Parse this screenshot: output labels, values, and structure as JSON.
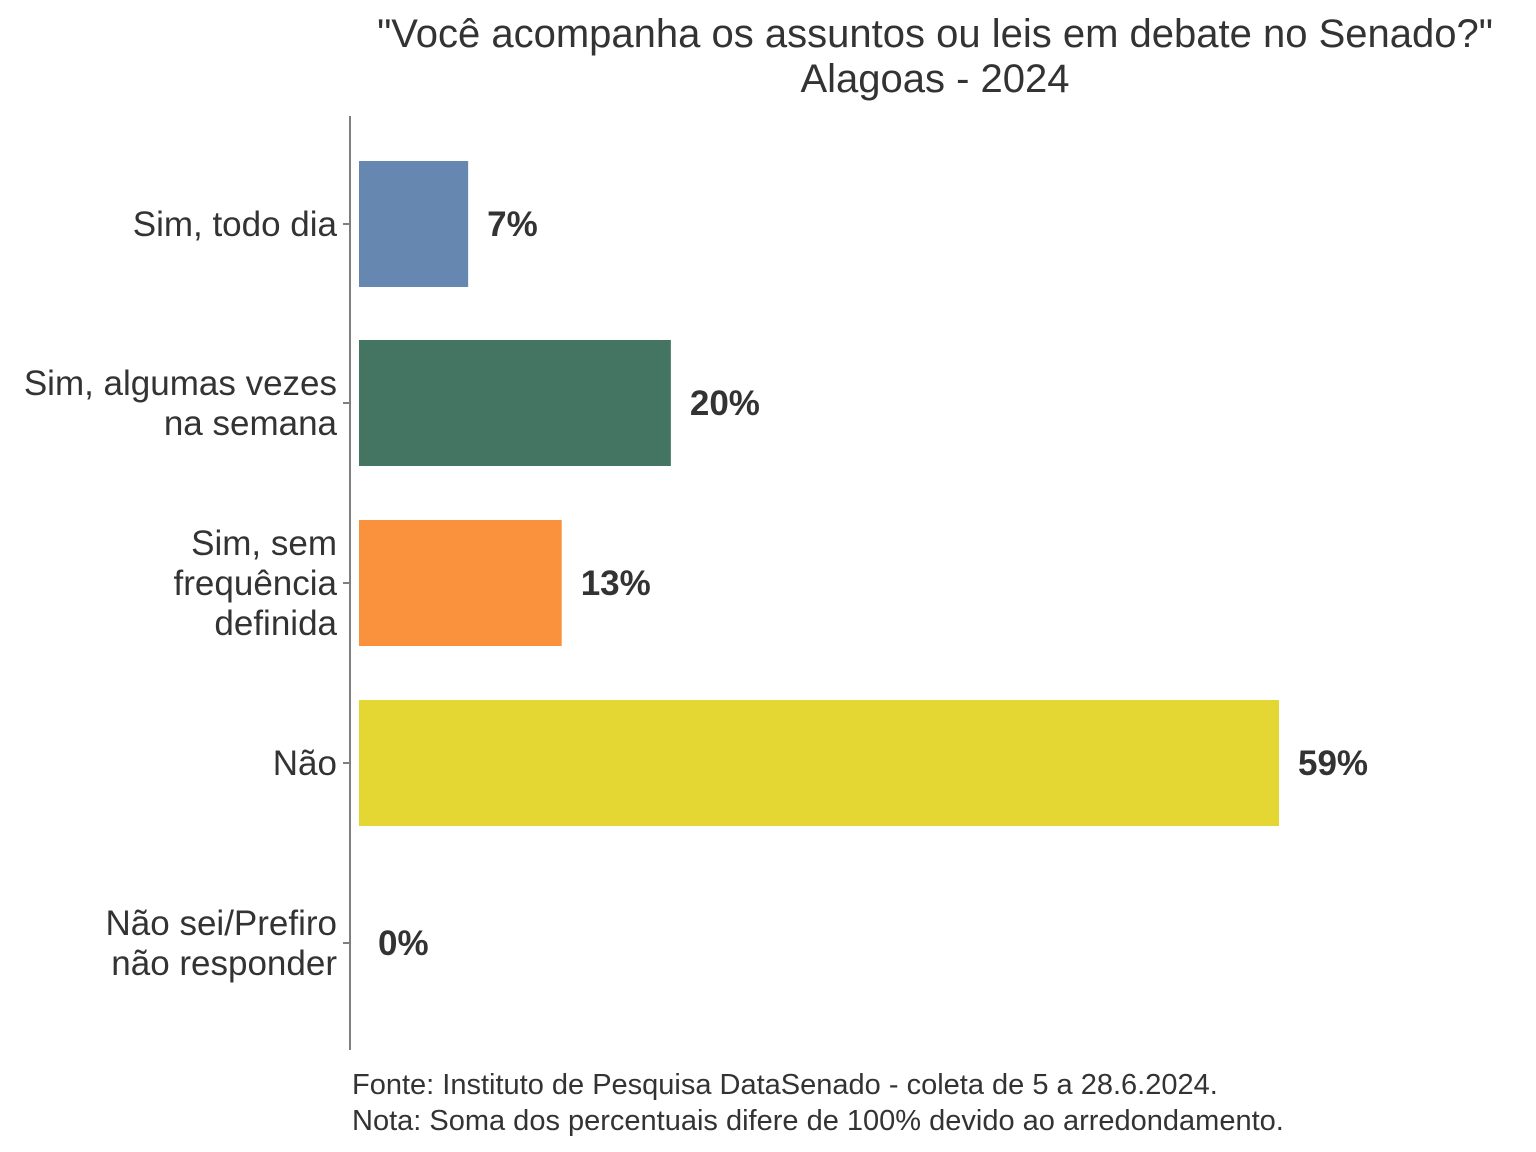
{
  "chart_data": {
    "type": "bar",
    "orientation": "horizontal",
    "title": "\"Você acompanha os assuntos ou leis em debate no Senado?\"",
    "subtitle": "Alagoas - 2024",
    "categories": [
      [
        "Sim, todo dia"
      ],
      [
        "Sim, algumas vezes",
        "na semana"
      ],
      [
        "Sim, sem",
        "frequência",
        "definida"
      ],
      [
        "Não"
      ],
      [
        "Não sei/Prefiro",
        "não responder"
      ]
    ],
    "values": [
      7,
      20,
      13,
      59,
      0
    ],
    "value_labels": [
      "7%",
      "20%",
      "13%",
      "59%",
      "0%"
    ],
    "colors": [
      "#6688b0",
      "#447562",
      "#fa913c",
      "#e4d734",
      "#d1d1d1"
    ],
    "xlim": [
      0,
      65
    ],
    "grid": false,
    "legend": "none"
  },
  "caption": {
    "source": "Fonte: Instituto de Pesquisa DataSenado - coleta de 5 a 28.6.2024.",
    "note": "Nota: Soma dos percentuais difere de 100% devido ao arredondamento."
  }
}
